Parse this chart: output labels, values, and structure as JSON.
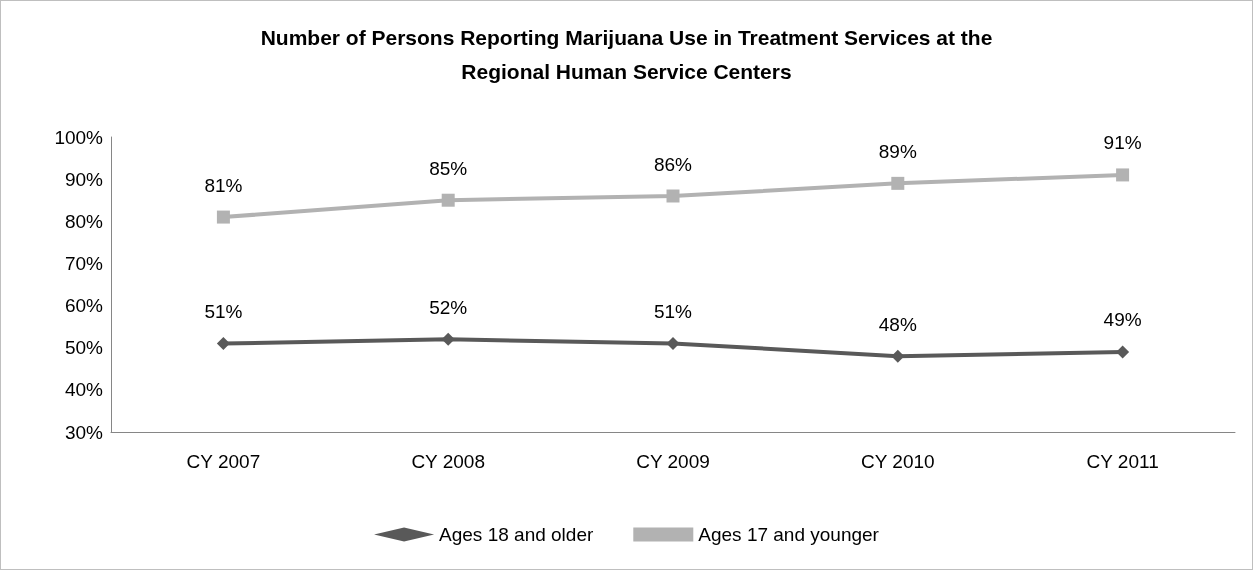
{
  "chart_data": {
    "type": "line",
    "title": "Number of Persons Reporting Marijuana Use in Treatment Services at the\nRegional Human Service Centers",
    "categories": [
      "CY 2007",
      "CY 2008",
      "CY 2009",
      "CY 2010",
      "CY 2011"
    ],
    "series": [
      {
        "name": "Ages 18 and older",
        "color": "#595959",
        "marker": "diamond",
        "values": [
          51,
          52,
          51,
          48,
          49
        ],
        "value_labels": [
          "51%",
          "52%",
          "51%",
          "48%",
          "49%"
        ]
      },
      {
        "name": "Ages 17 and younger",
        "color": "#b2b2b2",
        "marker": "square",
        "values": [
          81,
          85,
          86,
          89,
          91
        ],
        "value_labels": [
          "81%",
          "85%",
          "86%",
          "89%",
          "91%"
        ]
      }
    ],
    "ylim": [
      30,
      100
    ],
    "yticks": [
      {
        "value": 30,
        "label": "30%"
      },
      {
        "value": 40,
        "label": "40%"
      },
      {
        "value": 50,
        "label": "50%"
      },
      {
        "value": 60,
        "label": "60%"
      },
      {
        "value": 70,
        "label": "70%"
      },
      {
        "value": 80,
        "label": "80%"
      },
      {
        "value": 90,
        "label": "90%"
      },
      {
        "value": 100,
        "label": "100%"
      }
    ],
    "grid": false,
    "legend": "bottom",
    "line_style": "solid"
  }
}
